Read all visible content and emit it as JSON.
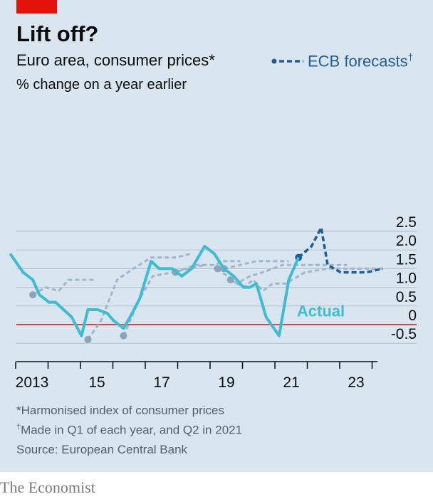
{
  "header": {
    "title": "Lift off?",
    "subtitle": "Euro area, consumer prices*",
    "unit": "% change on a year earlier",
    "legend_label": "ECB forecasts",
    "legend_mark": "†"
  },
  "footer": {
    "note1": "*Harmonised index of consumer prices",
    "note2_mark": "†",
    "note2": "Made in Q1 of each year, and Q2 in 2021",
    "source": "Source: European Central Bank",
    "brand": "The Economist"
  },
  "colors": {
    "actual": "#3ebcd2",
    "forecast_latest": "#1f5c99",
    "forecast_older": "#9fb6cc",
    "zero_line": "#db444b",
    "grid": "#b7c6cf",
    "axis_text": "#0c0c0c"
  },
  "chart_data": {
    "type": "line",
    "x_type": "decimal year",
    "xlim": [
      2012.9,
      2024.2
    ],
    "ylim": [
      -0.5,
      2.7
    ],
    "y_ticks": [
      "2.5",
      "2.0",
      "1.5",
      "1.0",
      "0.5",
      "0",
      "-0.5"
    ],
    "y_tick_values": [
      2.5,
      2.0,
      1.5,
      1.0,
      0.5,
      0,
      -0.5
    ],
    "x_ticks": [
      "2013",
      "15",
      "17",
      "19",
      "21",
      "23"
    ],
    "x_tick_values": [
      2013,
      2015,
      2017,
      2019,
      2021,
      2023
    ],
    "grid": true,
    "legend": "top-right",
    "annotations": [
      {
        "text": "Actual",
        "x": 2021.35,
        "y": 0.22
      }
    ],
    "series": [
      {
        "name": "Actual",
        "style": "solid",
        "x": [
          2012.5,
          2012.9,
          2013.2,
          2013.4,
          2013.7,
          2013.9,
          2014.4,
          2014.7,
          2014.9,
          2015.2,
          2015.5,
          2015.7,
          2016.0,
          2016.2,
          2016.5,
          2016.85,
          2017.1,
          2017.5,
          2017.8,
          2018.1,
          2018.5,
          2018.8,
          2019.1,
          2019.4,
          2019.7,
          2019.9,
          2020.1,
          2020.4,
          2020.8,
          2021.1,
          2021.4
        ],
        "y": [
          1.9,
          1.4,
          1.2,
          0.8,
          0.6,
          0.6,
          0.2,
          -0.3,
          0.4,
          0.4,
          0.3,
          0.1,
          -0.1,
          0.2,
          0.7,
          1.7,
          1.5,
          1.5,
          1.3,
          1.5,
          2.1,
          1.9,
          1.5,
          1.3,
          1.0,
          1.0,
          1.1,
          0.2,
          -0.3,
          1.2,
          1.8
        ]
      },
      {
        "style": "dashed",
        "emphasis": "latest",
        "x": [
          2021.4,
          2021.8,
          2022.1,
          2022.3,
          2022.7,
          2023.5,
          2024.0
        ],
        "y": [
          1.8,
          2.1,
          2.6,
          1.6,
          1.4,
          1.4,
          1.5
        ]
      },
      {
        "style": "dashed",
        "emphasis": "older",
        "x": [
          2013.2,
          2013.6,
          2014.0,
          2014.3,
          2014.6,
          2015.1
        ],
        "y": [
          0.8,
          1.0,
          0.9,
          1.2,
          1.2,
          1.2
        ]
      },
      {
        "style": "dashed",
        "emphasis": "older",
        "x": [
          2014.9,
          2015.3,
          2015.8,
          2016.3,
          2016.85,
          2017.6,
          2018.1
        ],
        "y": [
          -0.4,
          0.1,
          1.2,
          1.5,
          1.8,
          1.8,
          1.9
        ]
      },
      {
        "style": "dashed",
        "emphasis": "older",
        "x": [
          2016.0,
          2016.5,
          2016.9,
          2017.5,
          2018.5
        ],
        "y": [
          -0.3,
          0.7,
          1.3,
          1.4,
          1.6
        ]
      },
      {
        "style": "dashed",
        "emphasis": "older",
        "x": [
          2017.6,
          2018.2,
          2018.8,
          2019.1,
          2019.6
        ],
        "y": [
          1.4,
          1.6,
          1.6,
          1.7,
          1.7
        ]
      },
      {
        "style": "dashed",
        "emphasis": "older",
        "x": [
          2019.1,
          2019.6,
          2020.1,
          2020.6,
          2021.1
        ],
        "y": [
          1.5,
          1.6,
          1.7,
          1.7,
          1.7
        ]
      },
      {
        "style": "dashed",
        "emphasis": "older",
        "x": [
          2018.9,
          2019.5,
          2019.9,
          2020.3,
          2020.9,
          2021.3,
          2022.0,
          2022.5,
          2022.9
        ],
        "y": [
          1.5,
          1.1,
          1.3,
          1.4,
          1.6,
          1.6,
          1.6,
          1.6,
          1.6
        ]
      },
      {
        "style": "dashed",
        "emphasis": "older",
        "x": [
          2019.3,
          2019.7,
          2020.0,
          2020.3,
          2020.6,
          2021.0,
          2021.6,
          2022.3,
          2023.5,
          2024.0
        ],
        "y": [
          1.2,
          1.0,
          1.2,
          0.9,
          1.1,
          1.1,
          1.4,
          1.5,
          1.5,
          1.5
        ]
      }
    ]
  }
}
